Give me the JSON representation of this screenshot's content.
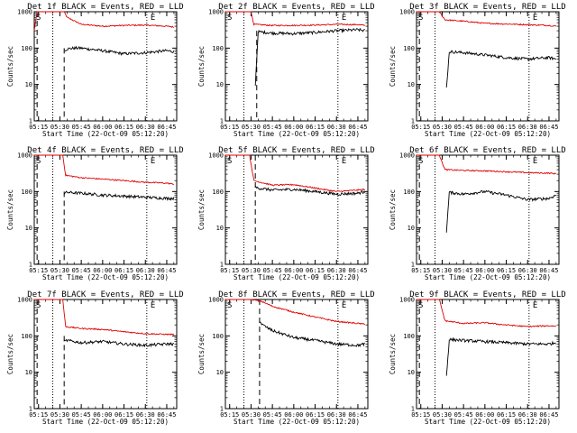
{
  "figure": {
    "colors": {
      "events": "#000000",
      "lld": "#e00000",
      "axes": "#000000",
      "background": "#ffffff"
    }
  },
  "chart_data": [
    {
      "type": "line",
      "title": "Det 1f BLACK = Events, RED = LLD",
      "xlabel": "Start Time (22-Oct-09 05:12:20)",
      "ylabel": "Counts/sec",
      "xlim": [
        "05:12",
        "06:52"
      ],
      "ylim": [
        1,
        1000
      ],
      "yscale": "log",
      "xticks": [
        "05:15",
        "05:30",
        "05:45",
        "06:00",
        "06:15",
        "06:30",
        "06:45"
      ],
      "yticks": [
        "1",
        "10",
        "100",
        "1000"
      ],
      "annotations": [
        "S",
        "E"
      ],
      "vlines": [
        {
          "x": "05:25",
          "style": "dotted"
        },
        {
          "x": "06:31",
          "style": "dotted"
        }
      ],
      "dashed": [
        {
          "x": "05:14",
          "y": [
            1,
            1000
          ]
        },
        {
          "x": "05:33",
          "y": [
            1,
            100
          ]
        }
      ],
      "series": [
        {
          "name": "LLD",
          "x": [
            "05:12",
            "05:14",
            "05:16",
            "05:33",
            "05:35",
            "05:45",
            "06:00",
            "06:15",
            "06:30",
            "06:45",
            "06:50"
          ],
          "y": [
            300,
            1000,
            1000,
            1000,
            700,
            450,
            400,
            420,
            430,
            400,
            380
          ]
        },
        {
          "name": "Events",
          "x": [
            "05:33",
            "05:35",
            "05:40",
            "05:45",
            "06:00",
            "06:15",
            "06:30",
            "06:45",
            "06:50"
          ],
          "y": [
            85,
            95,
            100,
            100,
            85,
            70,
            75,
            85,
            80
          ]
        }
      ]
    },
    {
      "type": "line",
      "title": "Det 2f BLACK = Events, RED = LLD",
      "xlabel": "Start Time (22-Oct-09 05:12:20)",
      "ylabel": "Counts/sec",
      "xlim": [
        "05:12",
        "06:52"
      ],
      "ylim": [
        1,
        1000
      ],
      "yscale": "log",
      "xticks": [
        "05:15",
        "05:30",
        "05:45",
        "06:00",
        "06:15",
        "06:30",
        "06:45"
      ],
      "yticks": [
        "1",
        "10",
        "100",
        "1000"
      ],
      "annotations": [
        "S",
        "E"
      ],
      "vlines": [
        {
          "x": "05:25",
          "style": "dotted"
        },
        {
          "x": "06:31",
          "style": "dotted"
        }
      ],
      "dashed": [
        {
          "x": "05:34",
          "y": [
            1,
            300
          ]
        }
      ],
      "series": [
        {
          "name": "LLD",
          "x": [
            "05:12",
            "05:15",
            "05:30",
            "05:32",
            "05:45",
            "06:00",
            "06:15",
            "06:30",
            "06:45",
            "06:50"
          ],
          "y": [
            1000,
            1000,
            1000,
            450,
            420,
            420,
            430,
            450,
            440,
            420
          ]
        },
        {
          "name": "Events",
          "x": [
            "05:33",
            "05:35",
            "05:45",
            "06:00",
            "06:15",
            "06:30",
            "06:45",
            "06:50"
          ],
          "y": [
            10,
            280,
            260,
            250,
            270,
            300,
            320,
            300
          ]
        }
      ]
    },
    {
      "type": "line",
      "title": "Det 3f BLACK = Events, RED = LLD",
      "xlabel": "Start Time (22-Oct-09 05:12:20)",
      "ylabel": "Counts/sec",
      "xlim": [
        "05:12",
        "06:52"
      ],
      "ylim": [
        1,
        1000
      ],
      "yscale": "log",
      "xticks": [
        "05:15",
        "05:30",
        "05:45",
        "06:00",
        "06:15",
        "06:30",
        "06:45"
      ],
      "yticks": [
        "1",
        "10",
        "100",
        "1000"
      ],
      "annotations": [
        "S",
        "E"
      ],
      "vlines": [
        {
          "x": "05:25",
          "style": "dotted"
        },
        {
          "x": "06:31",
          "style": "dotted"
        }
      ],
      "dashed": [
        {
          "x": "05:14",
          "y": [
            1,
            1000
          ]
        }
      ],
      "series": [
        {
          "name": "LLD",
          "x": [
            "05:12",
            "05:15",
            "05:28",
            "05:32",
            "05:45",
            "06:00",
            "06:15",
            "06:30",
            "06:45",
            "06:50"
          ],
          "y": [
            1000,
            1000,
            1000,
            600,
            550,
            480,
            460,
            440,
            420,
            400
          ]
        },
        {
          "name": "Events",
          "x": [
            "05:33",
            "05:35",
            "05:45",
            "06:00",
            "06:15",
            "06:30",
            "06:45",
            "06:50"
          ],
          "y": [
            8,
            80,
            75,
            65,
            55,
            50,
            55,
            50
          ]
        }
      ]
    },
    {
      "type": "line",
      "title": "Det 4f BLACK = Events, RED = LLD",
      "xlabel": "Start Time (22-Oct-09 05:12:20)",
      "ylabel": "Counts/sec",
      "xlim": [
        "05:12",
        "06:52"
      ],
      "ylim": [
        1,
        1000
      ],
      "yscale": "log",
      "xticks": [
        "05:15",
        "05:30",
        "05:45",
        "06:00",
        "06:15",
        "06:30",
        "06:45"
      ],
      "yticks": [
        "1",
        "10",
        "100",
        "1000"
      ],
      "annotations": [
        "S",
        "E"
      ],
      "vlines": [
        {
          "x": "05:25",
          "style": "dotted"
        },
        {
          "x": "06:31",
          "style": "dotted"
        }
      ],
      "dashed": [
        {
          "x": "05:14",
          "y": [
            1,
            1000
          ]
        },
        {
          "x": "05:33",
          "y": [
            1,
            100
          ]
        }
      ],
      "series": [
        {
          "name": "LLD",
          "x": [
            "05:12",
            "05:16",
            "05:32",
            "05:34",
            "05:45",
            "06:00",
            "06:15",
            "06:30",
            "06:45",
            "06:50"
          ],
          "y": [
            1000,
            1000,
            1000,
            280,
            240,
            220,
            200,
            180,
            170,
            160
          ]
        },
        {
          "name": "Events",
          "x": [
            "05:33",
            "05:35",
            "05:45",
            "06:00",
            "06:15",
            "06:30",
            "06:45",
            "06:50"
          ],
          "y": [
            90,
            95,
            90,
            80,
            75,
            70,
            65,
            65
          ]
        }
      ]
    },
    {
      "type": "line",
      "title": "Det 5f BLACK = Events, RED = LLD",
      "xlabel": "Start Time (22-Oct-09 05:12:20)",
      "ylabel": "Counts/sec",
      "xlim": [
        "05:12",
        "06:52"
      ],
      "ylim": [
        1,
        1000
      ],
      "yscale": "log",
      "xticks": [
        "05:15",
        "05:30",
        "05:45",
        "06:00",
        "06:15",
        "06:30",
        "06:45"
      ],
      "yticks": [
        "1",
        "10",
        "100",
        "1000"
      ],
      "annotations": [
        "S",
        "E"
      ],
      "vlines": [
        {
          "x": "05:25",
          "style": "dotted"
        },
        {
          "x": "06:31",
          "style": "dotted"
        }
      ],
      "dashed": [
        {
          "x": "05:33",
          "y": [
            1,
            1000
          ]
        }
      ],
      "series": [
        {
          "name": "LLD",
          "x": [
            "05:12",
            "05:15",
            "05:29",
            "05:32",
            "05:45",
            "06:00",
            "06:15",
            "06:30",
            "06:45",
            "06:50"
          ],
          "y": [
            1000,
            1000,
            1000,
            200,
            150,
            155,
            125,
            100,
            110,
            115
          ]
        },
        {
          "name": "Events",
          "x": [
            "05:33",
            "05:35",
            "05:45",
            "06:00",
            "06:15",
            "06:30",
            "06:45",
            "06:50"
          ],
          "y": [
            130,
            125,
            110,
            115,
            100,
            85,
            90,
            100
          ]
        }
      ]
    },
    {
      "type": "line",
      "title": "Det 6f BLACK = Events, RED = LLD",
      "xlabel": "Start Time (22-Oct-09 05:12:20)",
      "ylabel": "Counts/sec",
      "xlim": [
        "05:12",
        "06:52"
      ],
      "ylim": [
        1,
        1000
      ],
      "yscale": "log",
      "xticks": [
        "05:15",
        "05:30",
        "05:45",
        "06:00",
        "06:15",
        "06:30",
        "06:45"
      ],
      "yticks": [
        "1",
        "10",
        "100",
        "1000"
      ],
      "annotations": [
        "S",
        "E"
      ],
      "vlines": [
        {
          "x": "05:25",
          "style": "dotted"
        },
        {
          "x": "06:31",
          "style": "dotted"
        }
      ],
      "dashed": [
        {
          "x": "05:14",
          "y": [
            1,
            1000
          ]
        }
      ],
      "series": [
        {
          "name": "LLD",
          "x": [
            "05:12",
            "05:15",
            "05:28",
            "05:32",
            "05:45",
            "06:00",
            "06:15",
            "06:30",
            "06:45",
            "06:50"
          ],
          "y": [
            1000,
            1000,
            1000,
            400,
            380,
            370,
            350,
            330,
            320,
            310
          ]
        },
        {
          "name": "Events",
          "x": [
            "05:33",
            "05:35",
            "05:45",
            "06:00",
            "06:15",
            "06:30",
            "06:45",
            "06:50"
          ],
          "y": [
            8,
            95,
            85,
            100,
            80,
            60,
            65,
            80
          ]
        }
      ]
    },
    {
      "type": "line",
      "title": "Det 7f BLACK = Events, RED = LLD",
      "xlabel": "Start Time (22-Oct-09 05:12:20)",
      "ylabel": "Counts/sec",
      "xlim": [
        "05:12",
        "06:52"
      ],
      "ylim": [
        1,
        1000
      ],
      "yscale": "log",
      "xticks": [
        "05:15",
        "05:30",
        "05:45",
        "06:00",
        "06:15",
        "06:30",
        "06:45"
      ],
      "yticks": [
        "1",
        "10",
        "100",
        "1000"
      ],
      "annotations": [
        "S",
        "E"
      ],
      "vlines": [
        {
          "x": "05:25",
          "style": "dotted"
        },
        {
          "x": "06:31",
          "style": "dotted"
        }
      ],
      "dashed": [
        {
          "x": "05:14",
          "y": [
            1,
            1000
          ]
        },
        {
          "x": "05:33",
          "y": [
            1,
            100
          ]
        }
      ],
      "series": [
        {
          "name": "LLD",
          "x": [
            "05:12",
            "05:16",
            "05:32",
            "05:34",
            "05:45",
            "06:00",
            "06:15",
            "06:30",
            "06:45",
            "06:50"
          ],
          "y": [
            1000,
            1000,
            1000,
            180,
            160,
            150,
            130,
            115,
            110,
            110
          ]
        },
        {
          "name": "Events",
          "x": [
            "05:33",
            "05:35",
            "05:45",
            "06:00",
            "06:15",
            "06:30",
            "06:45",
            "06:50"
          ],
          "y": [
            70,
            75,
            65,
            70,
            60,
            55,
            60,
            60
          ]
        }
      ]
    },
    {
      "type": "line",
      "title": "Det 8f BLACK = Events, RED = LLD",
      "xlabel": "Start Time (22-Oct-09 05:12:20)",
      "ylabel": "Counts/sec",
      "xlim": [
        "05:12",
        "06:52"
      ],
      "ylim": [
        1,
        1000
      ],
      "yscale": "log",
      "xticks": [
        "05:15",
        "05:30",
        "05:45",
        "06:00",
        "06:15",
        "06:30",
        "06:45"
      ],
      "yticks": [
        "1",
        "10",
        "100",
        "1000"
      ],
      "annotations": [
        "S",
        "E"
      ],
      "vlines": [
        {
          "x": "05:25",
          "style": "dotted"
        },
        {
          "x": "06:31",
          "style": "dotted"
        }
      ],
      "dashed": [
        {
          "x": "05:36",
          "y": [
            1,
            1000
          ]
        }
      ],
      "series": [
        {
          "name": "LLD",
          "x": [
            "05:12",
            "05:15",
            "05:30",
            "05:37",
            "05:45",
            "06:00",
            "06:15",
            "06:30",
            "06:45",
            "06:50"
          ],
          "y": [
            1000,
            1000,
            1000,
            900,
            650,
            450,
            330,
            250,
            220,
            210
          ]
        },
        {
          "name": "Events",
          "x": [
            "05:36",
            "05:38",
            "05:45",
            "06:00",
            "06:15",
            "06:30",
            "06:45",
            "06:50"
          ],
          "y": [
            250,
            200,
            140,
            90,
            75,
            60,
            55,
            60
          ]
        }
      ]
    },
    {
      "type": "line",
      "title": "Det 9f BLACK = Events, RED = LLD",
      "xlabel": "Start Time (22-Oct-09 05:12:20)",
      "ylabel": "Counts/sec",
      "xlim": [
        "05:12",
        "06:52"
      ],
      "ylim": [
        1,
        1000
      ],
      "yscale": "log",
      "xticks": [
        "05:15",
        "05:30",
        "05:45",
        "06:00",
        "06:15",
        "06:30",
        "06:45"
      ],
      "yticks": [
        "1",
        "10",
        "100",
        "1000"
      ],
      "annotations": [
        "S",
        "E"
      ],
      "vlines": [
        {
          "x": "05:25",
          "style": "dotted"
        },
        {
          "x": "06:31",
          "style": "dotted"
        }
      ],
      "dashed": [
        {
          "x": "05:14",
          "y": [
            1,
            1000
          ]
        }
      ],
      "series": [
        {
          "name": "LLD",
          "x": [
            "05:12",
            "05:15",
            "05:28",
            "05:32",
            "05:45",
            "06:00",
            "06:15",
            "06:30",
            "06:45",
            "06:50"
          ],
          "y": [
            1000,
            1000,
            1000,
            260,
            220,
            230,
            200,
            180,
            190,
            185
          ]
        },
        {
          "name": "Events",
          "x": [
            "05:33",
            "05:35",
            "05:45",
            "06:00",
            "06:15",
            "06:30",
            "06:45",
            "06:50"
          ],
          "y": [
            8,
            80,
            75,
            70,
            65,
            60,
            60,
            65
          ]
        }
      ]
    }
  ]
}
